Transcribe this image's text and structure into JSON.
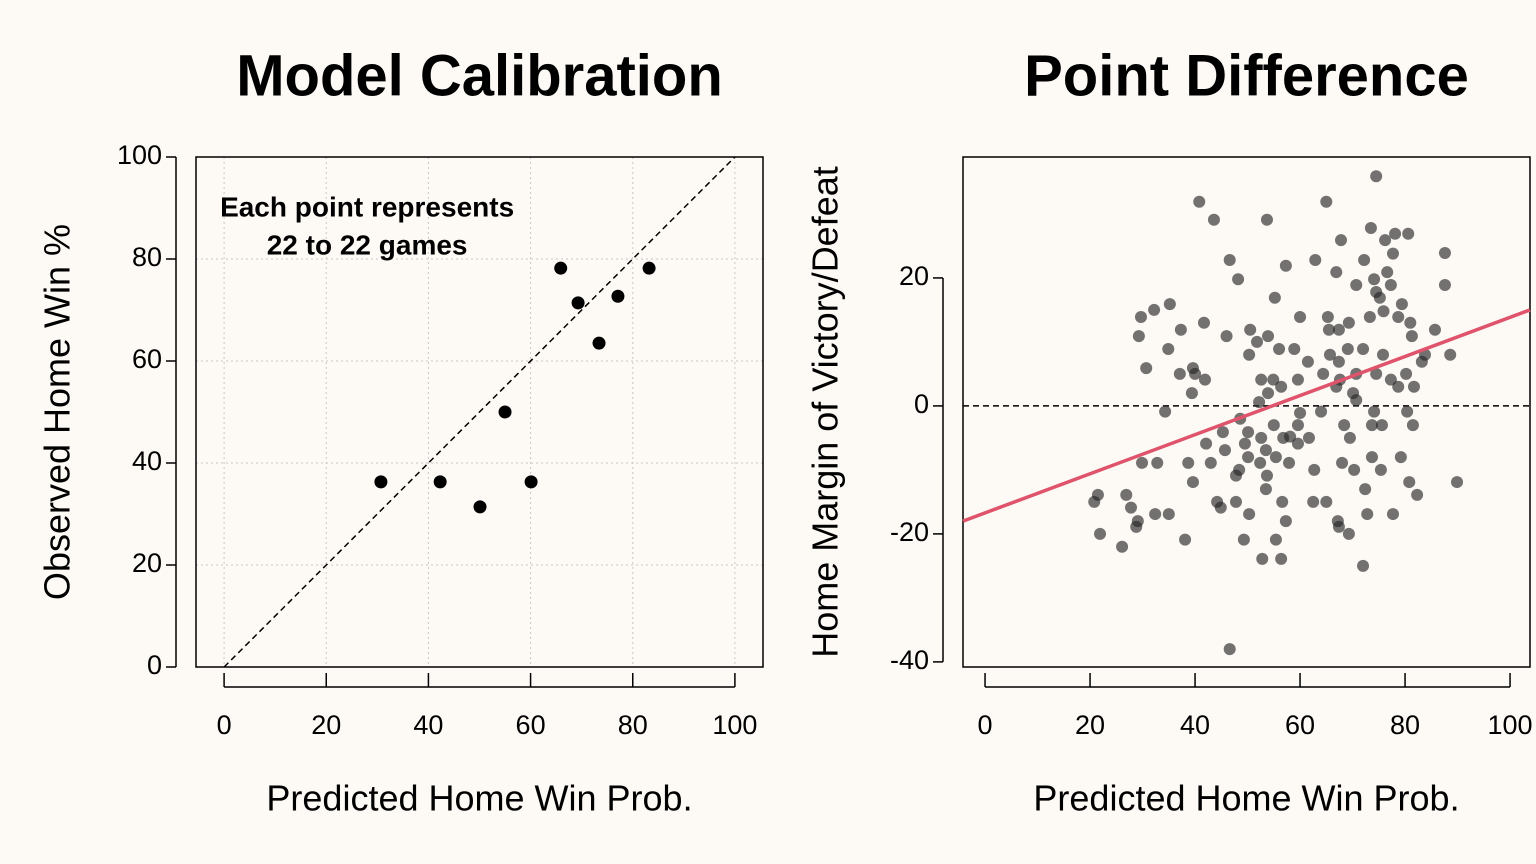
{
  "chart_data": [
    {
      "type": "scatter",
      "title": "Model Calibration",
      "xlabel": "Predicted Home Win Prob.",
      "ylabel": "Observed Home Win %",
      "annotation": [
        "Each point represents",
        "22 to 22 games"
      ],
      "x": [
        30.7,
        42.3,
        50.1,
        55,
        60.1,
        65.9,
        69.3,
        73.4,
        77.1,
        83.2
      ],
      "values": [
        36.3,
        36.3,
        31.4,
        50,
        36.3,
        78.2,
        71.4,
        63.5,
        72.7,
        78.2
      ],
      "color": "#000000",
      "xlim": [
        -5.5,
        105.5
      ],
      "ylim": [
        0,
        100
      ],
      "xticks": [
        0,
        20,
        40,
        60,
        80,
        100
      ],
      "yticks": [
        0,
        20,
        40,
        60,
        80,
        100
      ],
      "grid": true,
      "diagonal": true
    },
    {
      "type": "scatter",
      "title": "Point Difference",
      "xlabel": "Predicted Home Win Prob.",
      "ylabel": "Home Margin of Victory/Defeat",
      "x": [
        74.5,
        40.8,
        43.6,
        53.7,
        65,
        73.5,
        76.2,
        78.1,
        80.6,
        87.6,
        67.8,
        46.6,
        57.3,
        62.9,
        66.9,
        72.2,
        77.7,
        48.2,
        74.1,
        76.6,
        70.7,
        77.3,
        87.6,
        55.2,
        74.5,
        75.2,
        79.4,
        35.2,
        29.7,
        32.2,
        41.7,
        46,
        50.5,
        51.8,
        53.9,
        60,
        65.3,
        67.4,
        69.3,
        73.3,
        75.9,
        78.7,
        81,
        85.7,
        37.3,
        29.3,
        34.9,
        50.3,
        56,
        58.9,
        61.5,
        65.7,
        69.1,
        72,
        75.8,
        81.3,
        83.8,
        88.6,
        30.7,
        37.1,
        39.6,
        41.9,
        40,
        52.6,
        54.9,
        59.6,
        64.4,
        67.6,
        70.7,
        74.5,
        77.3,
        80.2,
        81.7,
        83.2,
        39.4,
        53.9,
        56.4,
        66.9,
        70.1,
        78.7,
        70.7,
        34.3,
        64,
        74.1,
        80.4,
        48.6,
        59.6,
        68.4,
        73.7,
        75.6,
        81.5,
        45.3,
        50.1,
        52.6,
        55,
        56.8,
        61.7,
        69.5,
        42.1,
        49.5,
        53.5,
        59.6,
        45.7,
        38.7,
        43,
        50.1,
        52.4,
        55.4,
        57.9,
        68,
        73.7,
        79.2,
        29.9,
        32.8,
        48.4,
        53.7,
        70.3,
        75.4,
        47.8,
        39.6,
        80.8,
        53.5,
        72.4,
        21.5,
        26.9,
        44.2,
        47.8,
        56.6,
        62.5,
        65,
        82.3,
        27.8,
        44.9,
        20.8,
        32.4,
        35,
        50.3,
        57.3,
        67.2,
        72.8,
        77.7,
        28.8,
        29.1,
        67.4,
        89.9,
        21.9,
        38.1,
        49.3,
        55.4,
        69.3,
        26.1,
        52.8,
        56.4,
        72,
        46.6,
        58.1,
        62.7,
        60,
        52.2,
        67.4,
        65.5
      ],
      "values": [
        35.9,
        31.9,
        29.1,
        29.1,
        31.9,
        27.8,
        25.9,
        26.9,
        26.9,
        23.9,
        25.9,
        22.8,
        21.9,
        22.8,
        20.9,
        22.8,
        23.8,
        19.8,
        19.8,
        20.9,
        18.9,
        18.9,
        18.9,
        16.9,
        17.8,
        16.9,
        15.9,
        15.9,
        13.9,
        15,
        13,
        10.9,
        11.9,
        10,
        10.9,
        13.9,
        13.9,
        11.9,
        13,
        13.9,
        14.8,
        13.9,
        13,
        11.9,
        11.9,
        10.9,
        8.9,
        8,
        8.9,
        8.9,
        6.9,
        8,
        8.9,
        8.9,
        8,
        10.9,
        8,
        8,
        5.9,
        5,
        5.9,
        4.1,
        5,
        4.1,
        4.1,
        4.1,
        5,
        4.1,
        5,
        5,
        4.1,
        5,
        3,
        6.9,
        2,
        2,
        3,
        3,
        2,
        3,
        0.9,
        -0.9,
        -0.9,
        -0.9,
        -0.9,
        -2,
        -3,
        -3,
        -3,
        -3,
        -3,
        -4.1,
        -4.1,
        -5,
        -3,
        -5,
        -5,
        -5,
        -5.9,
        -5.9,
        -6.9,
        -5.9,
        -6.9,
        -8.9,
        -8.9,
        -8,
        -8.9,
        -8,
        -8.9,
        -8.9,
        -8,
        -8,
        -8.9,
        -8.9,
        -10,
        -10.9,
        -10,
        -10,
        -10.9,
        -11.9,
        -11.9,
        -13,
        -13,
        -13.9,
        -13.9,
        -15,
        -15,
        -15,
        -15,
        -15,
        -13.9,
        -15.9,
        -15.9,
        -15,
        -16.9,
        -16.9,
        -16.9,
        -18,
        -18,
        -16.9,
        -16.9,
        -18.9,
        -18,
        -18.9,
        -11.9,
        -20,
        -20.9,
        -20.9,
        -20.9,
        -20,
        -22,
        -23.9,
        -23.9,
        -25,
        -38,
        -4.8,
        -10,
        -1.1,
        0.6,
        6.9,
        11.9
      ],
      "color": "rgba(40,40,40,0.65)",
      "xlim": [
        -4.2,
        103.8
      ],
      "ylim": [
        -40.8,
        38.9
      ],
      "xticks": [
        0,
        20,
        40,
        60,
        80,
        100
      ],
      "yticks": [
        -40,
        -20,
        0,
        20
      ],
      "grid": false,
      "hline": 0,
      "trend": {
        "x": [
          -4.2,
          103.8
        ],
        "values": [
          -18,
          15
        ],
        "color": "#df536b"
      }
    }
  ]
}
